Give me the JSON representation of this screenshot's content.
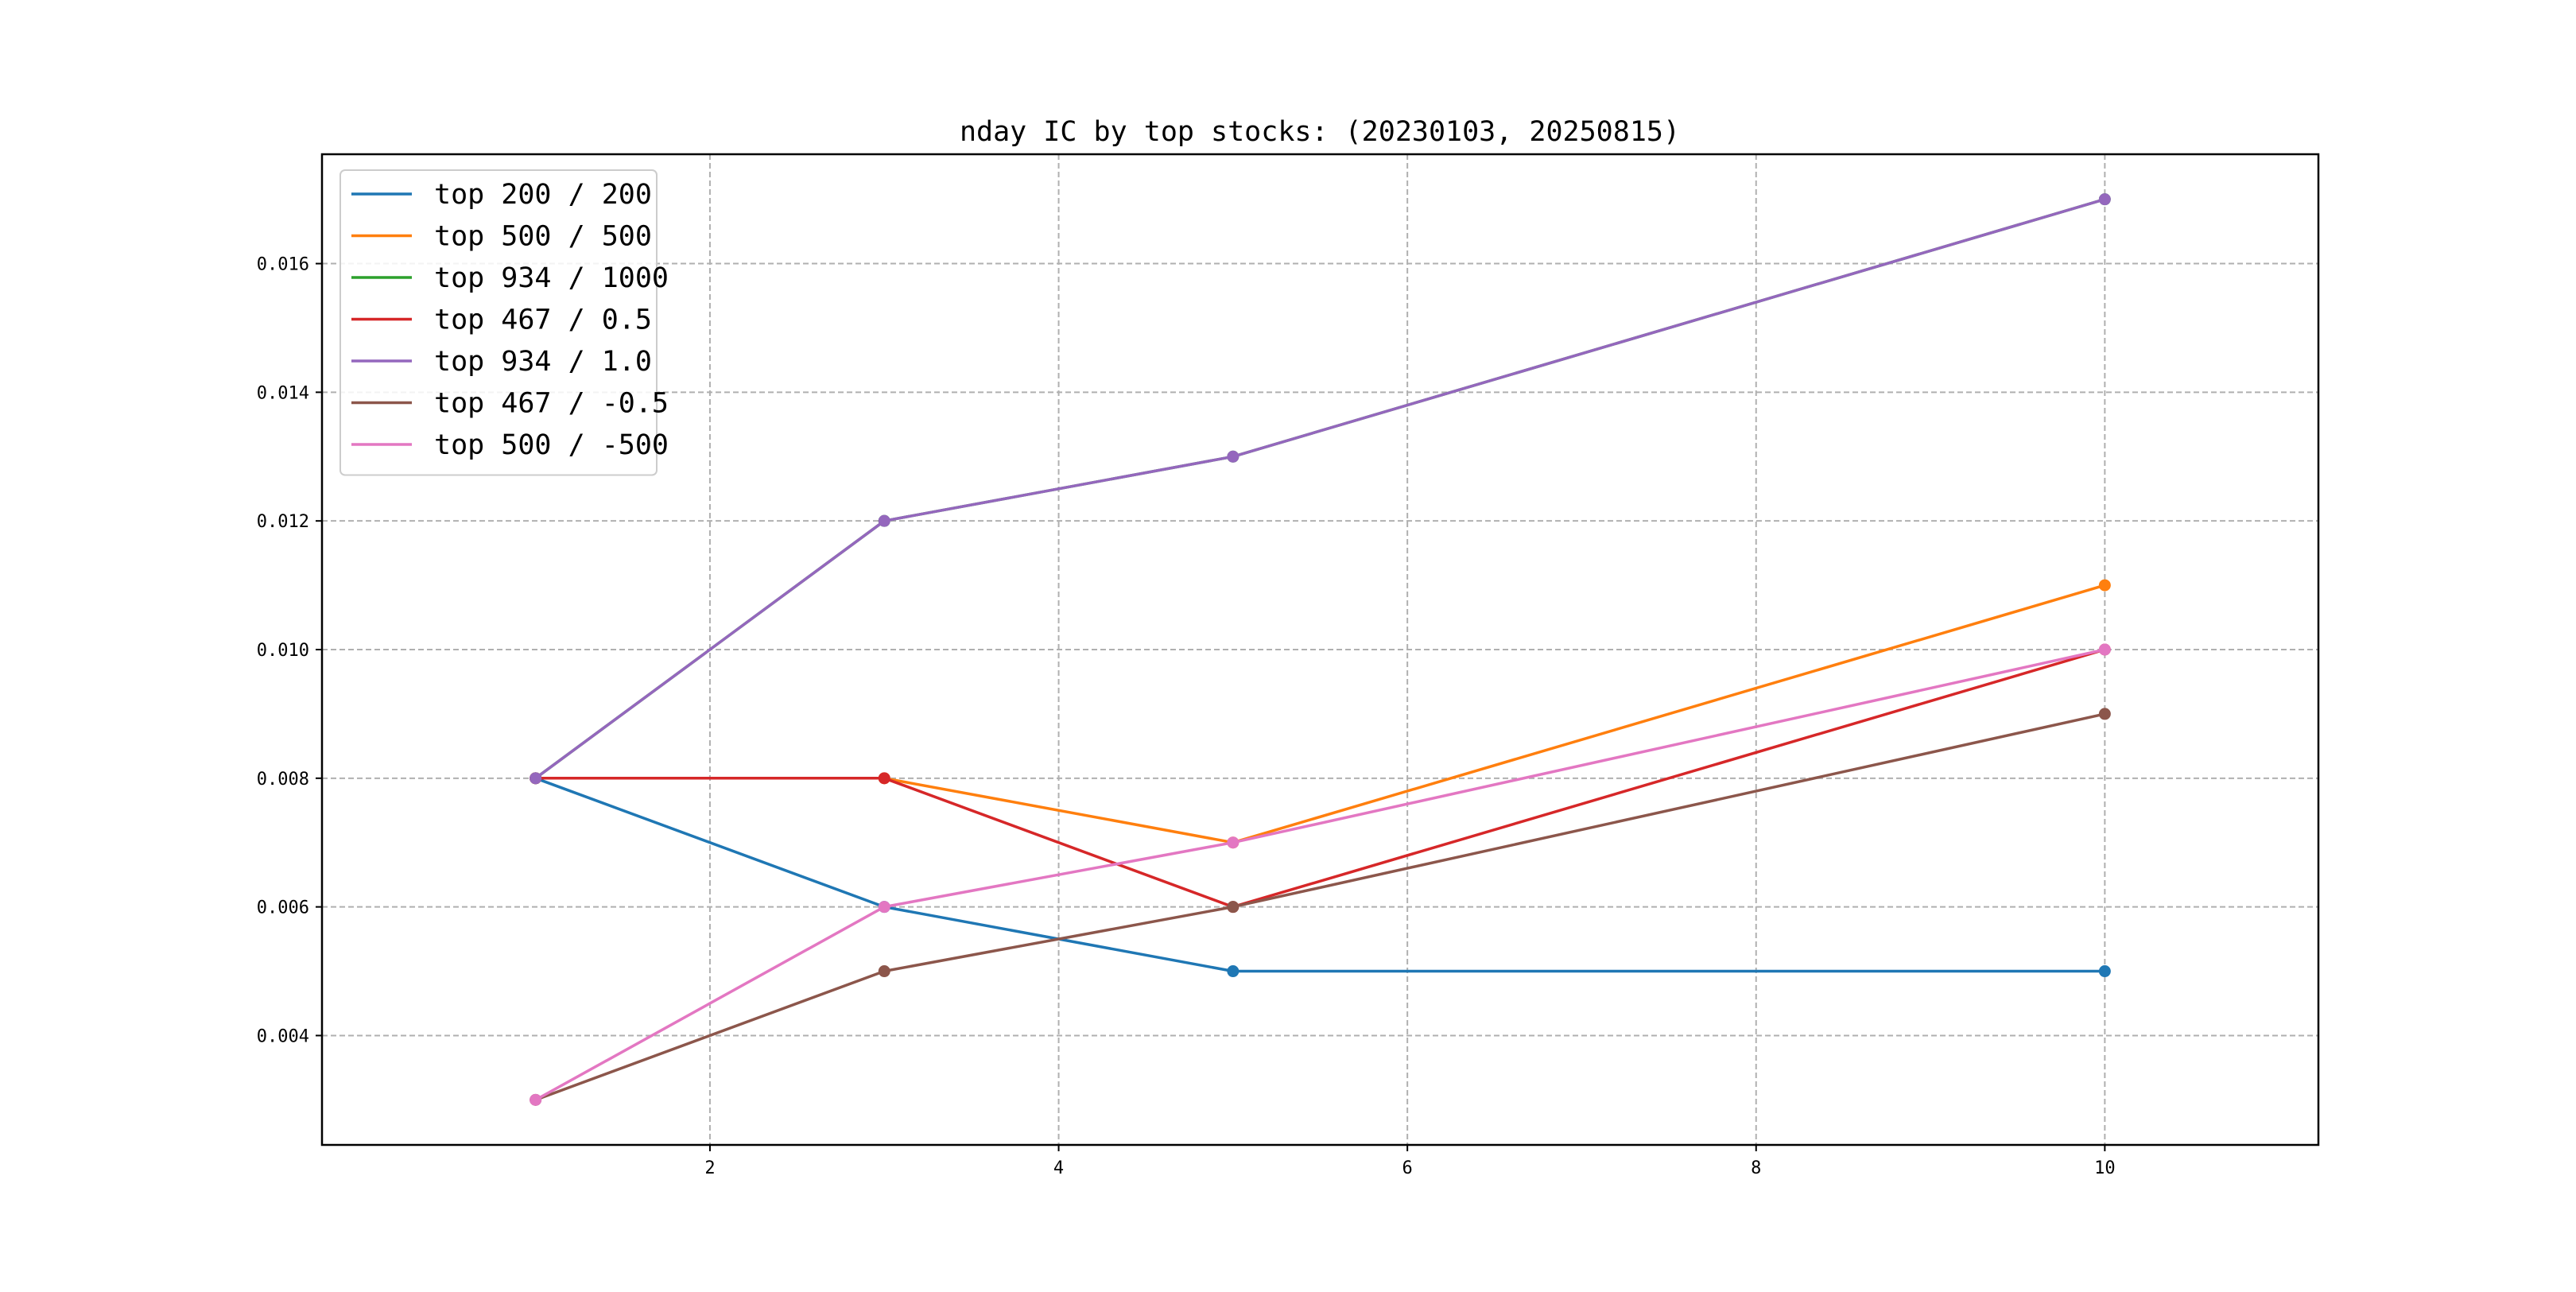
{
  "chart_data": {
    "type": "line",
    "title": "nday IC by top stocks: (20230103, 20250815)",
    "xlabel": "",
    "ylabel": "",
    "x": [
      1,
      3,
      5,
      10
    ],
    "xlim": [
      -0.225,
      11.225
    ],
    "ylim": [
      0.0023,
      0.0177
    ],
    "x_ticks": [
      2,
      4,
      6,
      8,
      10
    ],
    "y_ticks": [
      0.004,
      0.006,
      0.008,
      0.01,
      0.012,
      0.014,
      0.016
    ],
    "x_tick_labels": [
      "2",
      "4",
      "6",
      "8",
      "10"
    ],
    "y_tick_labels": [
      "0.004",
      "0.006",
      "0.008",
      "0.010",
      "0.012",
      "0.014",
      "0.016"
    ],
    "grid": true,
    "grid_style": "dashed",
    "markers": true,
    "legend_position": "top-left",
    "series": [
      {
        "name": "top 200 / 200",
        "color": "#1f77b4",
        "values": [
          0.008,
          0.006,
          0.005,
          0.005
        ]
      },
      {
        "name": "top 500 / 500",
        "color": "#ff7f0e",
        "values": [
          0.008,
          0.008,
          0.007,
          0.011
        ]
      },
      {
        "name": "top 934 / 1000",
        "color": "#2ca02c",
        "values": [
          0.008,
          0.012,
          0.013,
          0.017
        ]
      },
      {
        "name": "top 467 / 0.5",
        "color": "#d62728",
        "values": [
          0.008,
          0.008,
          0.006,
          0.01
        ]
      },
      {
        "name": "top 934 / 1.0",
        "color": "#9467bd",
        "values": [
          0.008,
          0.012,
          0.013,
          0.017
        ]
      },
      {
        "name": "top 467 / -0.5",
        "color": "#8c564b",
        "values": [
          0.003,
          0.005,
          0.006,
          0.009
        ]
      },
      {
        "name": "top 500 / -500",
        "color": "#e377c2",
        "values": [
          0.003,
          0.006,
          0.007,
          0.01
        ]
      }
    ]
  }
}
